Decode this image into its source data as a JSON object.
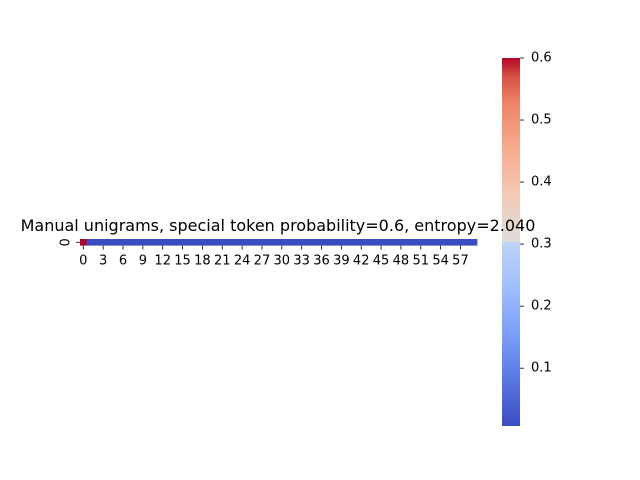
{
  "chart_data": {
    "type": "heatmap",
    "title": "Manual unigrams, special token probability=0.6, entropy=2.040",
    "row_labels": [
      "0"
    ],
    "columns": 60,
    "x_tick_labels": [
      "0",
      "3",
      "6",
      "9",
      "12",
      "15",
      "18",
      "21",
      "24",
      "27",
      "30",
      "33",
      "36",
      "39",
      "42",
      "45",
      "48",
      "51",
      "54",
      "57"
    ],
    "x_tick_values": [
      0,
      3,
      6,
      9,
      12,
      15,
      18,
      21,
      24,
      27,
      30,
      33,
      36,
      39,
      42,
      45,
      48,
      51,
      54,
      57
    ],
    "values": [
      0.6,
      0.0068,
      0.0068,
      0.0068,
      0.0068,
      0.0068,
      0.0068,
      0.0068,
      0.0068,
      0.0068,
      0.0068,
      0.0068,
      0.0068,
      0.0068,
      0.0068,
      0.0068,
      0.0068,
      0.0068,
      0.0068,
      0.0068,
      0.0068,
      0.0068,
      0.0068,
      0.0068,
      0.0068,
      0.0068,
      0.0068,
      0.0068,
      0.0068,
      0.0068,
      0.0068,
      0.0068,
      0.0068,
      0.0068,
      0.0068,
      0.0068,
      0.0068,
      0.0068,
      0.0068,
      0.0068,
      0.0068,
      0.0068,
      0.0068,
      0.0068,
      0.0068,
      0.0068,
      0.0068,
      0.0068,
      0.0068,
      0.0068,
      0.0068,
      0.0068,
      0.0068,
      0.0068,
      0.0068,
      0.0068,
      0.0068,
      0.0068,
      0.0068,
      0.0068
    ],
    "colormap": "coolwarm",
    "colorbar": {
      "min": 0.0068,
      "max": 0.6,
      "ticks": [
        0.1,
        0.2,
        0.3,
        0.4,
        0.5,
        0.6
      ],
      "tick_labels": [
        "0.1",
        "0.2",
        "0.3",
        "0.4",
        "0.5",
        "0.6"
      ]
    },
    "colors": {
      "low": "#3b4cc0",
      "mid": "#dddddd",
      "high": "#b40426"
    }
  }
}
